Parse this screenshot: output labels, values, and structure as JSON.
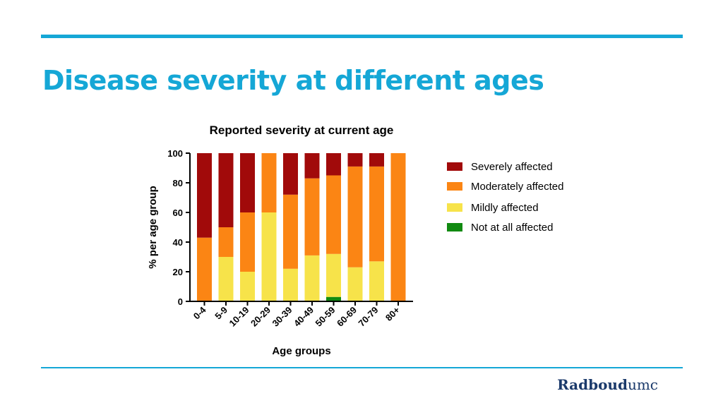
{
  "slide": {
    "title": "Disease severity at different ages",
    "logo_part1": "Radboud",
    "logo_part2": "umc",
    "accent_color": "#15a7d6",
    "logo_color": "#1b3a6b"
  },
  "chart_data": {
    "type": "bar",
    "stacked": true,
    "title": "Reported severity at current age",
    "xlabel": "Age groups",
    "ylabel": "% per age group",
    "ylim": [
      0,
      100
    ],
    "yticks": [
      0,
      20,
      40,
      60,
      80,
      100
    ],
    "grid": false,
    "legend_position": "right",
    "categories": [
      "0-4",
      "5-9",
      "10-19",
      "20-29",
      "30-39",
      "40-49",
      "50-59",
      "60-69",
      "70-79",
      "80+"
    ],
    "series": [
      {
        "name": "Not at all affected",
        "color": "#118a11",
        "values": [
          0,
          0,
          0,
          0,
          0,
          0,
          3,
          0,
          0,
          0
        ]
      },
      {
        "name": "Mildly affected",
        "color": "#f7e34a",
        "values": [
          0,
          30,
          20,
          60,
          22,
          31,
          29,
          23,
          27,
          0
        ]
      },
      {
        "name": "Moderately affected",
        "color": "#fb8514",
        "values": [
          43,
          20,
          40,
          40,
          50,
          52,
          53,
          68,
          64,
          100
        ]
      },
      {
        "name": "Severely affected",
        "color": "#a10a0a",
        "values": [
          57,
          50,
          40,
          0,
          28,
          17,
          15,
          9,
          9,
          0
        ]
      }
    ],
    "legend_order": [
      "Severely affected",
      "Moderately affected",
      "Mildly affected",
      "Not at all affected"
    ]
  }
}
